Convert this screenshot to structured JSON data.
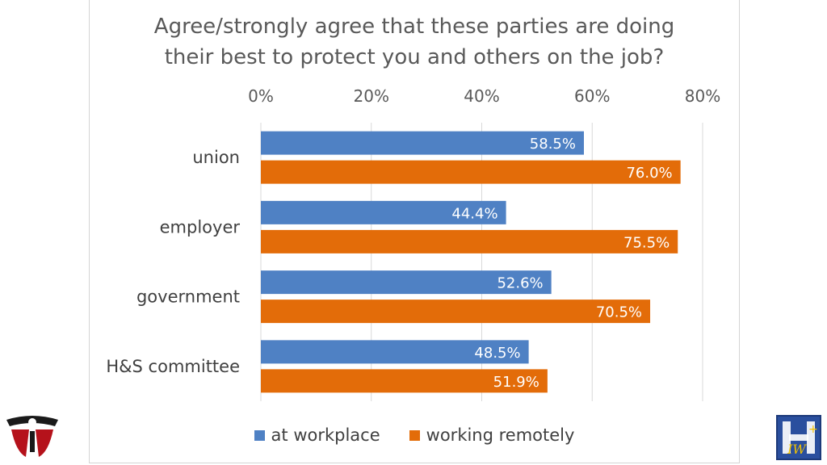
{
  "chart_data": {
    "type": "bar",
    "orientation": "horizontal",
    "title_lines": [
      "Agree/strongly agree that these parties are doing",
      "their best to protect you and others on the job?"
    ],
    "categories": [
      "union",
      "employer",
      "government",
      "H&S committee"
    ],
    "series": [
      {
        "name": "at workplace",
        "color": "#4f81c4",
        "values": [
          58.5,
          44.4,
          52.6,
          48.5
        ],
        "labels": [
          "58.5%",
          "44.4%",
          "52.6%",
          "48.5%"
        ]
      },
      {
        "name": "working remotely",
        "color": "#e36c09",
        "values": [
          76.0,
          75.5,
          70.5,
          51.9
        ],
        "labels": [
          "76.0%",
          "75.5%",
          "70.5%",
          "51.9%"
        ]
      }
    ],
    "x_ticks": [
      "0%",
      "20%",
      "40%",
      "60%",
      "80%"
    ],
    "xlim": [
      0,
      80
    ],
    "axis_position": "top",
    "grid": true,
    "legend_position": "bottom"
  },
  "logos": {
    "left": "red-black-union-logo",
    "right": "iwh-logo"
  }
}
